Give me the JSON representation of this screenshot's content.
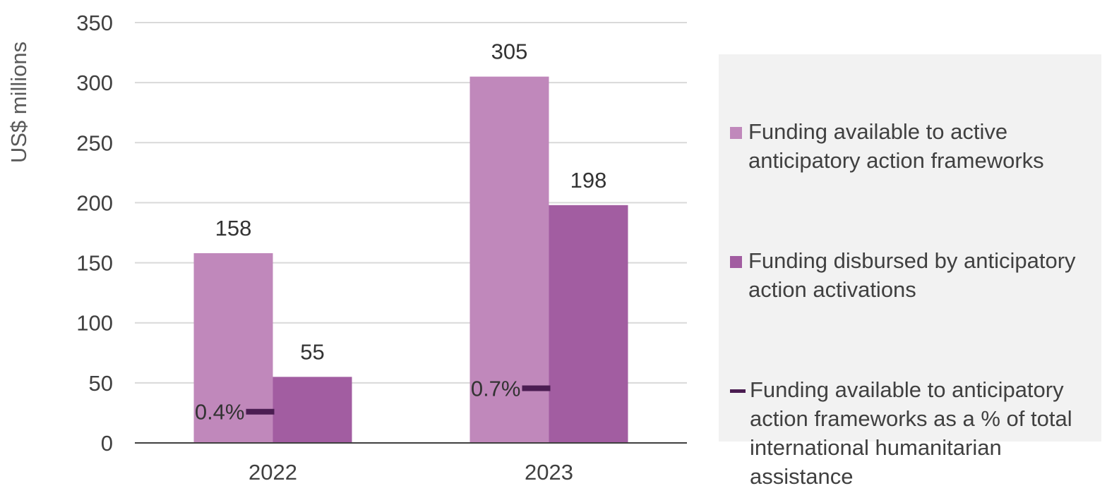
{
  "chart_data": {
    "type": "bar",
    "categories": [
      "2022",
      "2023"
    ],
    "ylabel": "US$ millions",
    "ylim": [
      0,
      350
    ],
    "yticks": [
      0,
      50,
      100,
      150,
      200,
      250,
      300,
      350
    ],
    "grid": true,
    "legend_position": "right",
    "series": [
      {
        "name": "Funding available to active anticipatory action frameworks",
        "values": [
          158,
          305
        ],
        "labels": [
          "158",
          "305"
        ],
        "color": "#c088bb"
      },
      {
        "name": "Funding disbursed by anticipatory action activations",
        "values": [
          55,
          198
        ],
        "labels": [
          "55",
          "198"
        ],
        "color": "#a25da1"
      }
    ],
    "percentage_series": {
      "name": "Funding available to anticipatory action frameworks as a % of total international humanitarian assistance",
      "values": [
        0.4,
        0.7
      ],
      "labels": [
        "0.4%",
        "0.7%"
      ],
      "color": "#4b1d52"
    }
  }
}
